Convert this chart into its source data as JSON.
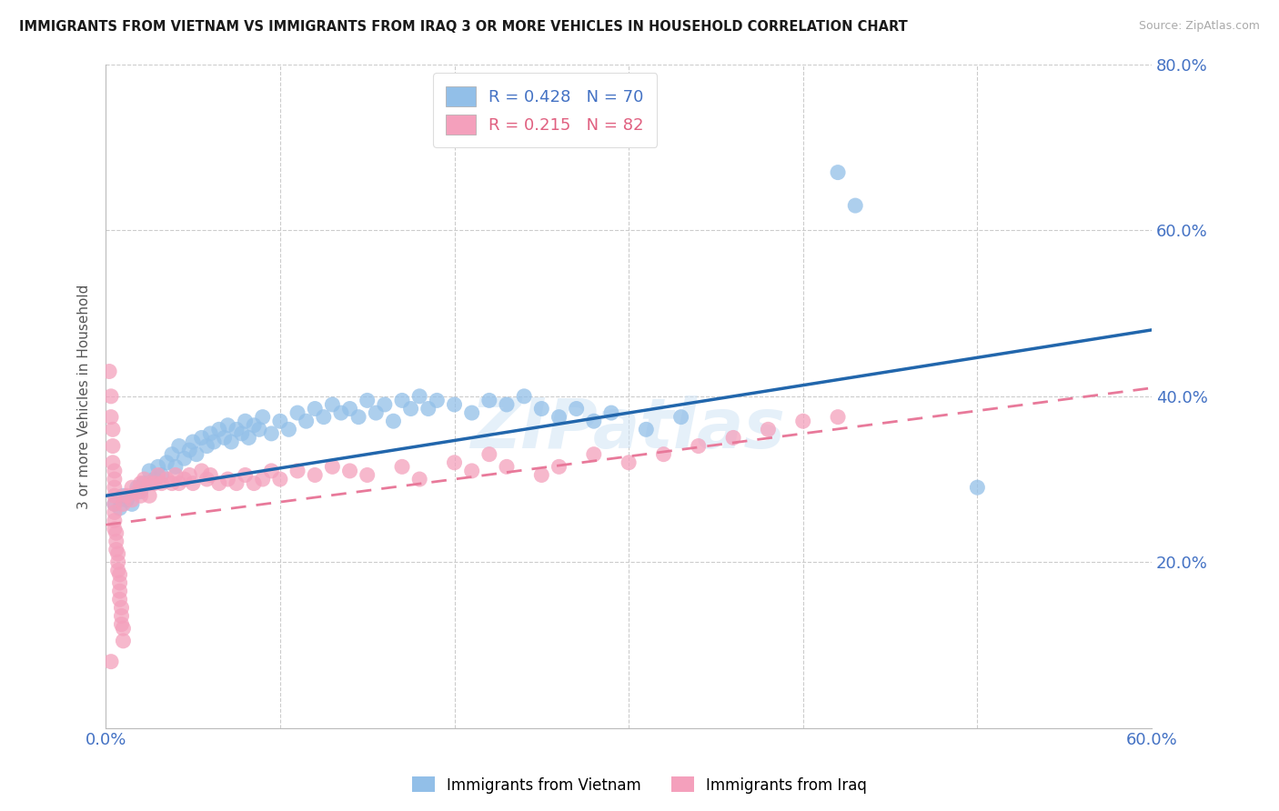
{
  "title": "IMMIGRANTS FROM VIETNAM VS IMMIGRANTS FROM IRAQ 3 OR MORE VEHICLES IN HOUSEHOLD CORRELATION CHART",
  "source": "Source: ZipAtlas.com",
  "ylabel": "3 or more Vehicles in Household",
  "xmin": 0.0,
  "xmax": 0.6,
  "ymin": 0.0,
  "ymax": 0.8,
  "vietnam_color": "#92bfe8",
  "iraq_color": "#f4a0bc",
  "trend_vietnam_color": "#2166ac",
  "trend_iraq_color": "#e8799a",
  "legend_vietnam_R": "0.428",
  "legend_vietnam_N": "70",
  "legend_iraq_R": "0.215",
  "legend_iraq_N": "82",
  "watermark": "ZIPatlas",
  "vietnam_scatter": [
    [
      0.005,
      0.27
    ],
    [
      0.008,
      0.265
    ],
    [
      0.01,
      0.28
    ],
    [
      0.012,
      0.275
    ],
    [
      0.015,
      0.27
    ],
    [
      0.018,
      0.29
    ],
    [
      0.02,
      0.285
    ],
    [
      0.022,
      0.295
    ],
    [
      0.025,
      0.31
    ],
    [
      0.028,
      0.3
    ],
    [
      0.03,
      0.315
    ],
    [
      0.032,
      0.305
    ],
    [
      0.035,
      0.32
    ],
    [
      0.038,
      0.33
    ],
    [
      0.04,
      0.315
    ],
    [
      0.042,
      0.34
    ],
    [
      0.045,
      0.325
    ],
    [
      0.048,
      0.335
    ],
    [
      0.05,
      0.345
    ],
    [
      0.052,
      0.33
    ],
    [
      0.055,
      0.35
    ],
    [
      0.058,
      0.34
    ],
    [
      0.06,
      0.355
    ],
    [
      0.062,
      0.345
    ],
    [
      0.065,
      0.36
    ],
    [
      0.068,
      0.35
    ],
    [
      0.07,
      0.365
    ],
    [
      0.072,
      0.345
    ],
    [
      0.075,
      0.36
    ],
    [
      0.078,
      0.355
    ],
    [
      0.08,
      0.37
    ],
    [
      0.082,
      0.35
    ],
    [
      0.085,
      0.365
    ],
    [
      0.088,
      0.36
    ],
    [
      0.09,
      0.375
    ],
    [
      0.095,
      0.355
    ],
    [
      0.1,
      0.37
    ],
    [
      0.105,
      0.36
    ],
    [
      0.11,
      0.38
    ],
    [
      0.115,
      0.37
    ],
    [
      0.12,
      0.385
    ],
    [
      0.125,
      0.375
    ],
    [
      0.13,
      0.39
    ],
    [
      0.135,
      0.38
    ],
    [
      0.14,
      0.385
    ],
    [
      0.145,
      0.375
    ],
    [
      0.15,
      0.395
    ],
    [
      0.155,
      0.38
    ],
    [
      0.16,
      0.39
    ],
    [
      0.165,
      0.37
    ],
    [
      0.17,
      0.395
    ],
    [
      0.175,
      0.385
    ],
    [
      0.18,
      0.4
    ],
    [
      0.185,
      0.385
    ],
    [
      0.19,
      0.395
    ],
    [
      0.2,
      0.39
    ],
    [
      0.21,
      0.38
    ],
    [
      0.22,
      0.395
    ],
    [
      0.23,
      0.39
    ],
    [
      0.24,
      0.4
    ],
    [
      0.25,
      0.385
    ],
    [
      0.26,
      0.375
    ],
    [
      0.27,
      0.385
    ],
    [
      0.28,
      0.37
    ],
    [
      0.29,
      0.38
    ],
    [
      0.31,
      0.36
    ],
    [
      0.33,
      0.375
    ],
    [
      0.42,
      0.67
    ],
    [
      0.43,
      0.63
    ],
    [
      0.5,
      0.29
    ]
  ],
  "iraq_scatter": [
    [
      0.002,
      0.43
    ],
    [
      0.003,
      0.4
    ],
    [
      0.003,
      0.375
    ],
    [
      0.004,
      0.36
    ],
    [
      0.004,
      0.34
    ],
    [
      0.004,
      0.32
    ],
    [
      0.005,
      0.31
    ],
    [
      0.005,
      0.3
    ],
    [
      0.005,
      0.29
    ],
    [
      0.005,
      0.28
    ],
    [
      0.005,
      0.27
    ],
    [
      0.005,
      0.26
    ],
    [
      0.005,
      0.25
    ],
    [
      0.005,
      0.24
    ],
    [
      0.006,
      0.235
    ],
    [
      0.006,
      0.225
    ],
    [
      0.006,
      0.215
    ],
    [
      0.007,
      0.21
    ],
    [
      0.007,
      0.2
    ],
    [
      0.007,
      0.19
    ],
    [
      0.008,
      0.185
    ],
    [
      0.008,
      0.175
    ],
    [
      0.008,
      0.165
    ],
    [
      0.008,
      0.155
    ],
    [
      0.009,
      0.145
    ],
    [
      0.009,
      0.135
    ],
    [
      0.009,
      0.125
    ],
    [
      0.01,
      0.12
    ],
    [
      0.01,
      0.105
    ],
    [
      0.003,
      0.08
    ],
    [
      0.01,
      0.27
    ],
    [
      0.012,
      0.28
    ],
    [
      0.015,
      0.29
    ],
    [
      0.015,
      0.275
    ],
    [
      0.018,
      0.285
    ],
    [
      0.02,
      0.295
    ],
    [
      0.02,
      0.28
    ],
    [
      0.022,
      0.3
    ],
    [
      0.025,
      0.295
    ],
    [
      0.025,
      0.28
    ],
    [
      0.028,
      0.295
    ],
    [
      0.03,
      0.305
    ],
    [
      0.032,
      0.295
    ],
    [
      0.035,
      0.3
    ],
    [
      0.038,
      0.295
    ],
    [
      0.04,
      0.305
    ],
    [
      0.042,
      0.295
    ],
    [
      0.045,
      0.3
    ],
    [
      0.048,
      0.305
    ],
    [
      0.05,
      0.295
    ],
    [
      0.055,
      0.31
    ],
    [
      0.058,
      0.3
    ],
    [
      0.06,
      0.305
    ],
    [
      0.065,
      0.295
    ],
    [
      0.07,
      0.3
    ],
    [
      0.075,
      0.295
    ],
    [
      0.08,
      0.305
    ],
    [
      0.085,
      0.295
    ],
    [
      0.09,
      0.3
    ],
    [
      0.095,
      0.31
    ],
    [
      0.1,
      0.3
    ],
    [
      0.11,
      0.31
    ],
    [
      0.12,
      0.305
    ],
    [
      0.13,
      0.315
    ],
    [
      0.14,
      0.31
    ],
    [
      0.15,
      0.305
    ],
    [
      0.17,
      0.315
    ],
    [
      0.18,
      0.3
    ],
    [
      0.2,
      0.32
    ],
    [
      0.21,
      0.31
    ],
    [
      0.22,
      0.33
    ],
    [
      0.23,
      0.315
    ],
    [
      0.25,
      0.305
    ],
    [
      0.26,
      0.315
    ],
    [
      0.28,
      0.33
    ],
    [
      0.3,
      0.32
    ],
    [
      0.32,
      0.33
    ],
    [
      0.34,
      0.34
    ],
    [
      0.36,
      0.35
    ],
    [
      0.38,
      0.36
    ],
    [
      0.4,
      0.37
    ],
    [
      0.42,
      0.375
    ]
  ],
  "vietnam_trendline": [
    [
      0.0,
      0.28
    ],
    [
      0.6,
      0.48
    ]
  ],
  "iraq_trendline": [
    [
      0.0,
      0.245
    ],
    [
      0.6,
      0.41
    ]
  ]
}
